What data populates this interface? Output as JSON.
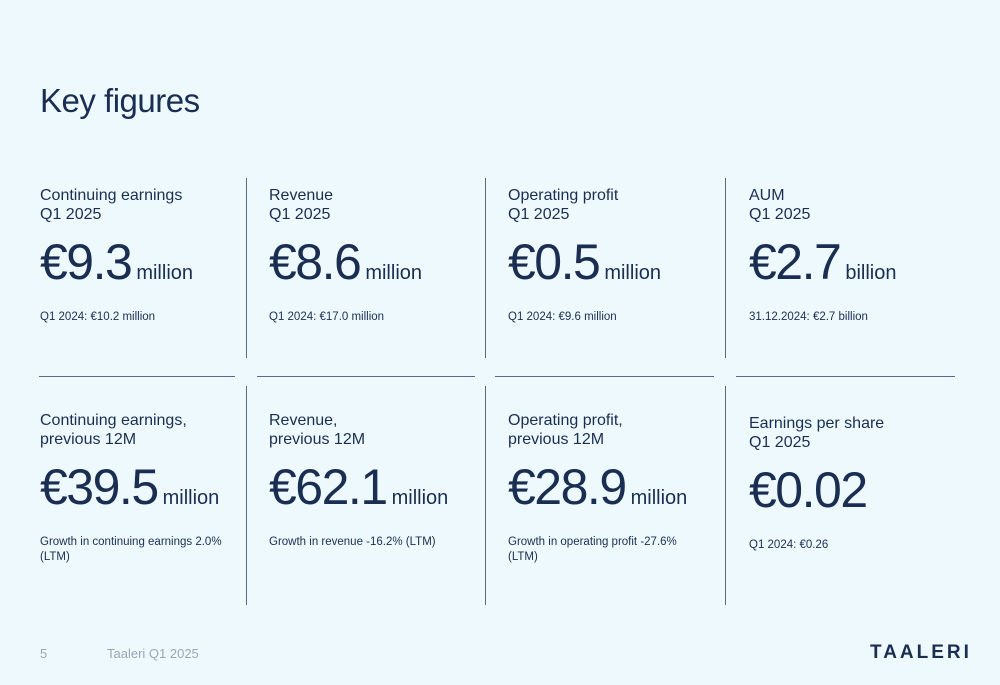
{
  "title": "Key figures",
  "cards": [
    {
      "label1": "Continuing earnings",
      "label2": "Q1 2025",
      "value": "€9.3",
      "unit": "million",
      "note": "Q1 2024: €10.2 million"
    },
    {
      "label1": "Revenue",
      "label2": "Q1 2025",
      "value": "€8.6",
      "unit": "million",
      "note": "Q1 2024: €17.0 million"
    },
    {
      "label1": "Operating profit",
      "label2": "Q1 2025",
      "value": "€0.5",
      "unit": "million",
      "note": "Q1 2024: €9.6 million"
    },
    {
      "label1": "AUM",
      "label2": "Q1 2025",
      "value": "€2.7",
      "unit": "billion",
      "note": "31.12.2024: €2.7 billion"
    },
    {
      "label1": "Continuing earnings,",
      "label2": "previous 12M",
      "value": "€39.5",
      "unit": "million",
      "note": "Growth in continuing earnings 2.0% (LTM)"
    },
    {
      "label1": "Revenue,",
      "label2": "previous 12M",
      "value": "€62.1",
      "unit": "million",
      "note": "Growth in revenue -16.2% (LTM)"
    },
    {
      "label1": "Operating profit,",
      "label2": "previous 12M",
      "value": "€28.9",
      "unit": "million",
      "note": "Growth in operating profit -27.6% (LTM)"
    },
    {
      "label1": "Earnings per share",
      "label2": "Q1 2025",
      "value": "€0.02",
      "unit": "",
      "note": "Q1 2024: €0.26"
    }
  ],
  "footer": {
    "page_number": "5",
    "report": "Taaleri Q1 2025",
    "logo": "TAALERI"
  }
}
